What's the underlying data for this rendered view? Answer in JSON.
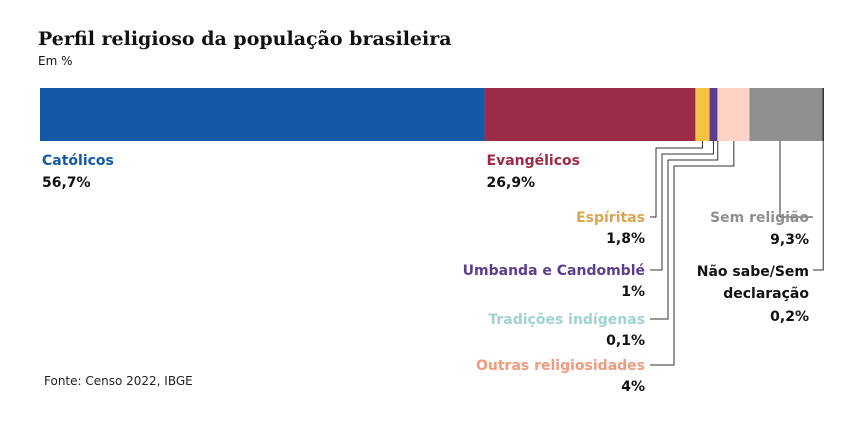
{
  "title": "Perfil religioso da população brasileira",
  "subtitle": "Em %",
  "source": "Fonte: Censo 2022, IBGE",
  "chart_data": {
    "type": "bar",
    "stacked": true,
    "orientation": "horizontal",
    "title": "Perfil religioso da população brasileira",
    "unit": "Em %",
    "series": [
      {
        "name": "Católicos",
        "value": 56.7,
        "label": "56,7%",
        "color": "#1459a6"
      },
      {
        "name": "Evangélicos",
        "value": 26.9,
        "label": "26,9%",
        "color": "#9c2b48"
      },
      {
        "name": "Espíritas",
        "value": 1.8,
        "label": "1,8%",
        "color": "#f5c242"
      },
      {
        "name": "Umbanda e Candomblé",
        "value": 1,
        "label": "1%",
        "color": "#5a3d91"
      },
      {
        "name": "Tradições indígenas",
        "value": 0.1,
        "label": "0,1%",
        "color": "#9fd3cf"
      },
      {
        "name": "Outras religiosidades",
        "value": 4,
        "label": "4%",
        "color": "#fcd2c4"
      },
      {
        "name": "Sem religião",
        "value": 9.3,
        "label": "9,3%",
        "color": "#8f8f8f"
      },
      {
        "name": "Não sabe/Sem declaração",
        "value": 0.2,
        "label": "0,2%",
        "color": "#333333"
      }
    ],
    "label_colors": {
      "Católicos": "#1459a6",
      "Evangélicos": "#9c2b48",
      "Espíritas": "#d9a54f",
      "Umbanda e Candomblé": "#5a3d91",
      "Tradições indígenas": "#9fd3cf",
      "Outras religiosidades": "#f19a7e",
      "Sem religião": "#8f8f8f",
      "Não sabe/Sem declaração": "#111111"
    }
  }
}
